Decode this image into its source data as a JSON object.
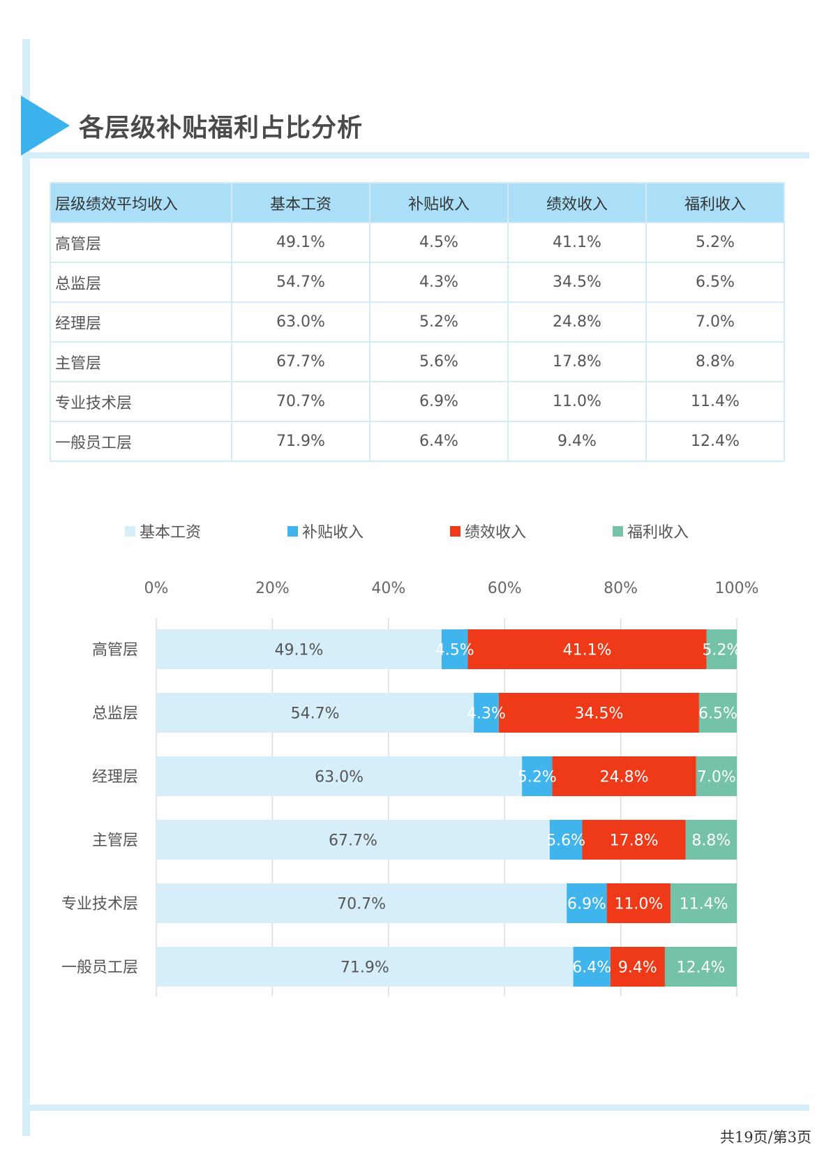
{
  "title": "各层级补贴福利占比分析",
  "table": {
    "headers": [
      "层级绩效平均收入",
      "基本工资",
      "补贴收入",
      "绩效收入",
      "福利收入"
    ],
    "rows": [
      [
        "高管层",
        "49.1%",
        "4.5%",
        "41.1%",
        "5.2%"
      ],
      [
        "总监层",
        "54.7%",
        "4.3%",
        "34.5%",
        "6.5%"
      ],
      [
        "经理层",
        "63.0%",
        "5.2%",
        "24.8%",
        "7.0%"
      ],
      [
        "主管层",
        "67.7%",
        "5.6%",
        "17.8%",
        "8.8%"
      ],
      [
        "专业技术层",
        "70.7%",
        "6.9%",
        "11.0%",
        "11.4%"
      ],
      [
        "一般员工层",
        "71.9%",
        "6.4%",
        "9.4%",
        "12.4%"
      ]
    ]
  },
  "chart_data": {
    "type": "bar",
    "orientation": "horizontal",
    "stacked": "percent",
    "categories": [
      "高管层",
      "总监层",
      "经理层",
      "主管层",
      "专业技术层",
      "一般员工层"
    ],
    "series": [
      {
        "name": "基本工资",
        "values": [
          49.1,
          54.7,
          63.0,
          67.7,
          70.7,
          71.9
        ],
        "color": "#d6eef9",
        "label_color": "#555555"
      },
      {
        "name": "补贴收入",
        "values": [
          4.5,
          4.3,
          5.2,
          5.6,
          6.9,
          6.4
        ],
        "color": "#40b4ec",
        "label_color": "#ffffff"
      },
      {
        "name": "绩效收入",
        "values": [
          41.1,
          34.5,
          24.8,
          17.8,
          11.0,
          9.4
        ],
        "color": "#ee3a18",
        "label_color": "#ffffff"
      },
      {
        "name": "福利收入",
        "values": [
          5.2,
          6.5,
          7.0,
          8.8,
          11.4,
          12.4
        ],
        "color": "#74c2a7",
        "label_color": "#ffffff"
      }
    ],
    "xticks": [
      "0%",
      "20%",
      "40%",
      "60%",
      "80%",
      "100%"
    ],
    "xlim": [
      0,
      100
    ],
    "grid": true,
    "legend_position": "top"
  },
  "footer": "共19页/第3页"
}
